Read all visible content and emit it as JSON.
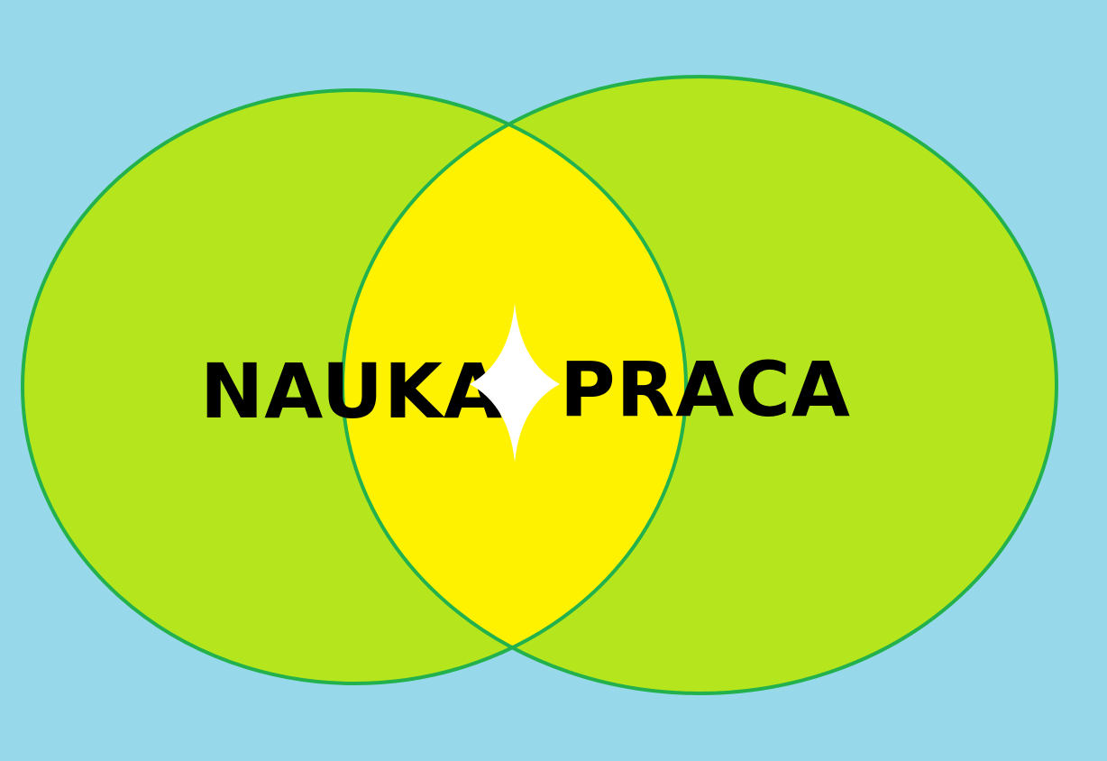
{
  "diagram": {
    "type": "venn",
    "left_set": {
      "label": "NAUKA"
    },
    "right_set": {
      "label": "PRACA"
    },
    "intersection": {
      "icon": "four-point-star-icon"
    }
  },
  "colors": {
    "background": "#97d9ea",
    "circle_fill": "#b5e61d",
    "circle_stroke": "#22b14c",
    "intersection_fill": "#fff200",
    "star_fill": "#ffffff",
    "text": "#000000"
  }
}
